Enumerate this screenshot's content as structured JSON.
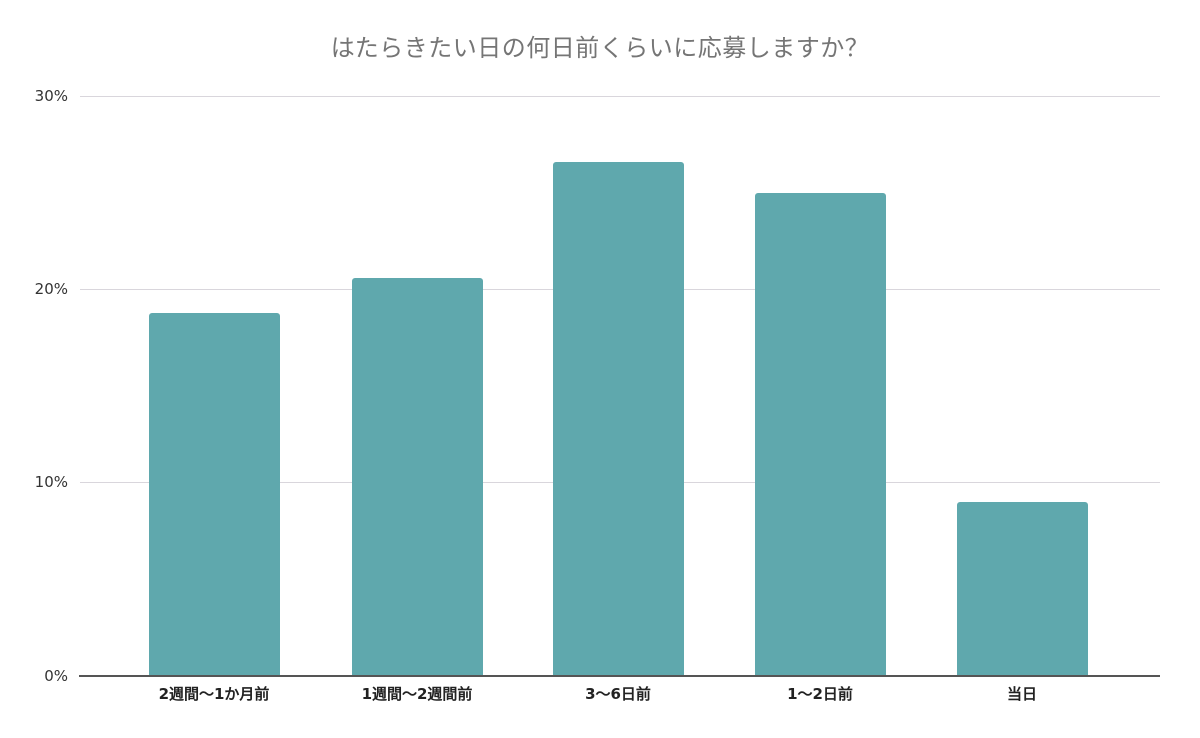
{
  "chart_data": {
    "type": "bar",
    "title": "はたらきたい日の何日前くらいに応募しますか？",
    "xlabel": "",
    "ylabel": "",
    "categories": [
      "2週間〜1か月前",
      "1週間〜2週間前",
      "3〜6日前",
      "1〜2日前",
      "当日"
    ],
    "values": [
      18.8,
      20.6,
      26.6,
      25.0,
      9.0
    ],
    "value_unit": "%",
    "ylim": [
      0,
      30
    ],
    "yticks": [
      "0%",
      "10%",
      "20%",
      "30%"
    ],
    "grid": true,
    "legend": null,
    "bar_color": "#5fa8ad"
  }
}
